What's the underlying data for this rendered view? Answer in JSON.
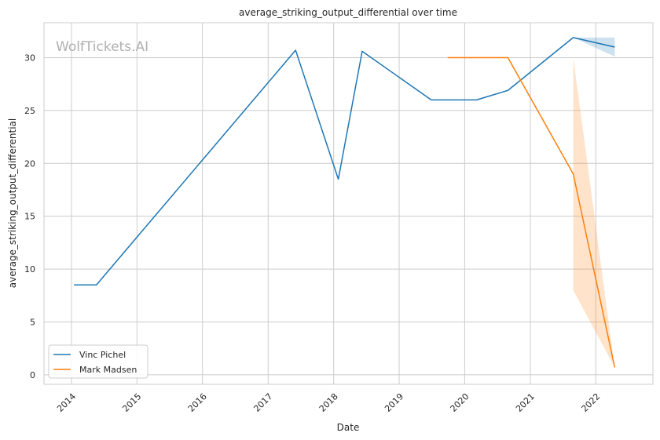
{
  "chart_data": {
    "type": "line",
    "title": "average_striking_output_differential over time",
    "xlabel": "Date",
    "ylabel": "average_striking_output_differential",
    "watermark": "WolfTickets.AI",
    "xlim": [
      "2013-08-01",
      "2022-11-15"
    ],
    "ylim": [
      -0.9,
      33.3
    ],
    "x_ticks": [
      "2014",
      "2015",
      "2016",
      "2017",
      "2018",
      "2019",
      "2020",
      "2021",
      "2022"
    ],
    "y_ticks": [
      "0",
      "5",
      "10",
      "15",
      "20",
      "25",
      "30"
    ],
    "grid": true,
    "legend_position": "lower-left",
    "colors": {
      "Vinc Pichel": "#1f77b4",
      "Mark Madsen": "#ff7f0e",
      "grid": "#cccccc"
    },
    "series": [
      {
        "name": "Vinc Pichel",
        "points": [
          {
            "x": "2014-01-15",
            "y": 8.5
          },
          {
            "x": "2014-05-20",
            "y": 8.5
          },
          {
            "x": "2017-06-03",
            "y": 30.7
          },
          {
            "x": "2018-01-27",
            "y": 18.5
          },
          {
            "x": "2018-06-09",
            "y": 30.6
          },
          {
            "x": "2019-06-29",
            "y": 26.0
          },
          {
            "x": "2020-03-07",
            "y": 26.0
          },
          {
            "x": "2020-08-29",
            "y": 26.9
          },
          {
            "x": "2021-08-28",
            "y": 31.9
          },
          {
            "x": "2022-04-16",
            "y": 31.0
          }
        ],
        "band": [
          {
            "x": "2021-08-28",
            "low": 31.9,
            "high": 31.9
          },
          {
            "x": "2022-04-16",
            "low": 30.1,
            "high": 31.9
          }
        ]
      },
      {
        "name": "Mark Madsen",
        "points": [
          {
            "x": "2019-09-28",
            "y": 30.0
          },
          {
            "x": "2020-08-29",
            "y": 30.0
          },
          {
            "x": "2021-08-28",
            "y": 19.0
          },
          {
            "x": "2022-04-16",
            "y": 0.7
          }
        ],
        "band": [
          {
            "x": "2021-08-28",
            "low": 8.0,
            "high": 30.0
          },
          {
            "x": "2022-04-16",
            "low": 0.7,
            "high": 0.7
          }
        ]
      }
    ]
  }
}
